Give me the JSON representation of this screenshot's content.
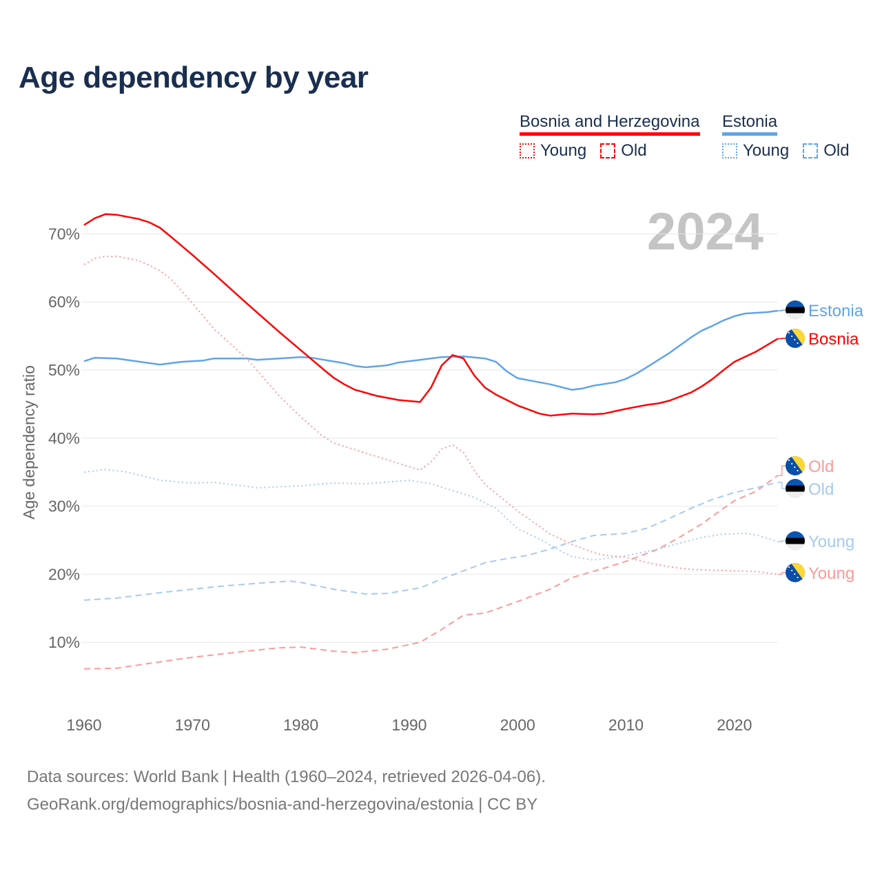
{
  "title": "Age dependency by year",
  "legend": {
    "groups": [
      {
        "name": "Bosnia and Herzegovina",
        "color": "#ff0000",
        "items": [
          "Young",
          "Old"
        ]
      },
      {
        "name": "Estonia",
        "color": "#5fa4e8",
        "items": [
          "Young",
          "Old"
        ]
      }
    ]
  },
  "year_watermark": "2024",
  "footer": {
    "line1": "Data sources: World Bank | Health (1960–2024, retrieved 2026-04-06).",
    "line2": "GeoRank.org/demographics/bosnia-and-herzegovina/estonia | CC BY"
  },
  "chart_data": {
    "type": "line",
    "title": "Age dependency by year",
    "xlabel": "",
    "ylabel": "Age dependency ratio",
    "xlim": [
      1960,
      2024
    ],
    "ylim": [
      0,
      75
    ],
    "xticks": [
      1960,
      1970,
      1980,
      1990,
      2000,
      2010,
      2020
    ],
    "yticks": [
      10,
      20,
      30,
      40,
      50,
      60,
      70
    ],
    "ytick_labels": [
      "10%",
      "20%",
      "30%",
      "40%",
      "50%",
      "60%",
      "70%"
    ],
    "grid": "horizontal",
    "legend_position": "top-right",
    "series": [
      {
        "name": "Estonia",
        "end_label": "Estonia",
        "flag": "estonia",
        "color": "#5fa4e8",
        "style": "solid",
        "points": [
          [
            1960,
            51.3
          ],
          [
            1961,
            51.8
          ],
          [
            1963,
            51.7
          ],
          [
            1967,
            50.8
          ],
          [
            1969,
            51.2
          ],
          [
            1971,
            51.4
          ],
          [
            1972,
            51.7
          ],
          [
            1975,
            51.7
          ],
          [
            1976,
            51.5
          ],
          [
            1980,
            51.9
          ],
          [
            1981,
            51.8
          ],
          [
            1984,
            51.0
          ],
          [
            1985,
            50.6
          ],
          [
            1986,
            50.4
          ],
          [
            1988,
            50.7
          ],
          [
            1989,
            51.1
          ],
          [
            1991,
            51.5
          ],
          [
            1993,
            51.9
          ],
          [
            1995,
            52.0
          ],
          [
            1997,
            51.7
          ],
          [
            1998,
            51.2
          ],
          [
            1999,
            49.8
          ],
          [
            2000,
            48.8
          ],
          [
            2001,
            48.5
          ],
          [
            2003,
            47.9
          ],
          [
            2005,
            47.1
          ],
          [
            2006,
            47.3
          ],
          [
            2007,
            47.7
          ],
          [
            2009,
            48.2
          ],
          [
            2010,
            48.7
          ],
          [
            2011,
            49.5
          ],
          [
            2012,
            50.5
          ],
          [
            2014,
            52.5
          ],
          [
            2016,
            54.8
          ],
          [
            2017,
            55.8
          ],
          [
            2018,
            56.5
          ],
          [
            2019,
            57.3
          ],
          [
            2020,
            57.9
          ],
          [
            2021,
            58.3
          ],
          [
            2023,
            58.5
          ],
          [
            2024,
            58.7
          ]
        ]
      },
      {
        "name": "Bosnia and Herzegovina",
        "end_label": "Bosnia",
        "flag": "bosnia",
        "color": "#ff0000",
        "style": "solid",
        "points": [
          [
            1960,
            71.3
          ],
          [
            1961,
            72.3
          ],
          [
            1962,
            72.9
          ],
          [
            1963,
            72.8
          ],
          [
            1965,
            72.2
          ],
          [
            1966,
            71.7
          ],
          [
            1967,
            70.9
          ],
          [
            1968,
            69.6
          ],
          [
            1970,
            66.9
          ],
          [
            1972,
            64.1
          ],
          [
            1975,
            59.8
          ],
          [
            1978,
            55.6
          ],
          [
            1980,
            52.9
          ],
          [
            1982,
            50.2
          ],
          [
            1983,
            48.9
          ],
          [
            1984,
            47.9
          ],
          [
            1985,
            47.1
          ],
          [
            1987,
            46.2
          ],
          [
            1989,
            45.6
          ],
          [
            1991,
            45.3
          ],
          [
            1992,
            47.4
          ],
          [
            1993,
            50.7
          ],
          [
            1994,
            52.2
          ],
          [
            1995,
            51.7
          ],
          [
            1996,
            49.2
          ],
          [
            1997,
            47.4
          ],
          [
            1998,
            46.4
          ],
          [
            2000,
            44.8
          ],
          [
            2002,
            43.6
          ],
          [
            2003,
            43.3
          ],
          [
            2005,
            43.6
          ],
          [
            2007,
            43.5
          ],
          [
            2008,
            43.6
          ],
          [
            2010,
            44.3
          ],
          [
            2012,
            44.9
          ],
          [
            2013,
            45.1
          ],
          [
            2014,
            45.5
          ],
          [
            2016,
            46.7
          ],
          [
            2017,
            47.6
          ],
          [
            2018,
            48.7
          ],
          [
            2019,
            50.0
          ],
          [
            2020,
            51.2
          ],
          [
            2022,
            52.7
          ],
          [
            2024,
            54.6
          ]
        ]
      },
      {
        "name": "Bosnia and Herzegovina Old",
        "end_label": "Old",
        "flag": "bosnia",
        "color": "#ff9999",
        "style": "dashed",
        "points": [
          [
            1960,
            6.1
          ],
          [
            1963,
            6.2
          ],
          [
            1966,
            6.9
          ],
          [
            1970,
            7.8
          ],
          [
            1975,
            8.7
          ],
          [
            1978,
            9.2
          ],
          [
            1980,
            9.3
          ],
          [
            1983,
            8.7
          ],
          [
            1985,
            8.5
          ],
          [
            1988,
            9.0
          ],
          [
            1991,
            10.0
          ],
          [
            1993,
            11.9
          ],
          [
            1995,
            14.0
          ],
          [
            1997,
            14.3
          ],
          [
            2000,
            16.0
          ],
          [
            2003,
            17.8
          ],
          [
            2005,
            19.5
          ],
          [
            2008,
            20.9
          ],
          [
            2010,
            21.9
          ],
          [
            2013,
            23.7
          ],
          [
            2015,
            25.5
          ],
          [
            2017,
            27.4
          ],
          [
            2019,
            29.7
          ],
          [
            2020,
            30.8
          ],
          [
            2022,
            32.2
          ],
          [
            2024,
            34.5
          ]
        ]
      },
      {
        "name": "Estonia Old",
        "end_label": "Old",
        "flag": "estonia",
        "color": "#a6c9f0",
        "style": "dashed",
        "points": [
          [
            1960,
            16.2
          ],
          [
            1963,
            16.5
          ],
          [
            1967,
            17.3
          ],
          [
            1970,
            17.8
          ],
          [
            1973,
            18.3
          ],
          [
            1977,
            18.8
          ],
          [
            1979,
            19.0
          ],
          [
            1980,
            18.8
          ],
          [
            1983,
            17.8
          ],
          [
            1986,
            17.1
          ],
          [
            1988,
            17.2
          ],
          [
            1991,
            18.0
          ],
          [
            1993,
            19.3
          ],
          [
            1995,
            20.5
          ],
          [
            1997,
            21.7
          ],
          [
            1999,
            22.3
          ],
          [
            2001,
            22.8
          ],
          [
            2003,
            23.7
          ],
          [
            2005,
            24.8
          ],
          [
            2007,
            25.7
          ],
          [
            2009,
            25.9
          ],
          [
            2010,
            26.0
          ],
          [
            2012,
            26.8
          ],
          [
            2014,
            28.2
          ],
          [
            2016,
            29.7
          ],
          [
            2018,
            31.0
          ],
          [
            2020,
            32.0
          ],
          [
            2022,
            32.7
          ],
          [
            2024,
            33.5
          ]
        ]
      },
      {
        "name": "Estonia Young",
        "end_label": "Young",
        "flag": "estonia",
        "color": "#a6c9f0",
        "style": "dotted",
        "points": [
          [
            1960,
            35.0
          ],
          [
            1962,
            35.4
          ],
          [
            1964,
            35.0
          ],
          [
            1967,
            33.8
          ],
          [
            1970,
            33.4
          ],
          [
            1972,
            33.5
          ],
          [
            1976,
            32.7
          ],
          [
            1980,
            33.0
          ],
          [
            1983,
            33.4
          ],
          [
            1986,
            33.3
          ],
          [
            1990,
            33.8
          ],
          [
            1992,
            33.3
          ],
          [
            1994,
            32.3
          ],
          [
            1996,
            31.3
          ],
          [
            1998,
            29.7
          ],
          [
            2000,
            26.7
          ],
          [
            2002,
            25.2
          ],
          [
            2004,
            23.4
          ],
          [
            2005,
            22.6
          ],
          [
            2007,
            22.1
          ],
          [
            2010,
            22.7
          ],
          [
            2013,
            23.7
          ],
          [
            2015,
            24.6
          ],
          [
            2017,
            25.4
          ],
          [
            2019,
            25.9
          ],
          [
            2021,
            26.0
          ],
          [
            2022,
            25.8
          ],
          [
            2024,
            24.8
          ]
        ]
      },
      {
        "name": "Bosnia and Herzegovina Young",
        "end_label": "Young",
        "flag": "bosnia",
        "color": "#ff9999",
        "style": "dotted",
        "points": [
          [
            1960,
            65.5
          ],
          [
            1961,
            66.4
          ],
          [
            1962,
            66.7
          ],
          [
            1963,
            66.7
          ],
          [
            1965,
            66.1
          ],
          [
            1966,
            65.4
          ],
          [
            1967,
            64.6
          ],
          [
            1968,
            63.4
          ],
          [
            1970,
            59.8
          ],
          [
            1972,
            56.0
          ],
          [
            1975,
            51.7
          ],
          [
            1978,
            46.2
          ],
          [
            1980,
            43.1
          ],
          [
            1982,
            40.3
          ],
          [
            1983,
            39.3
          ],
          [
            1985,
            38.3
          ],
          [
            1987,
            37.3
          ],
          [
            1989,
            36.3
          ],
          [
            1991,
            35.3
          ],
          [
            1992,
            36.5
          ],
          [
            1993,
            38.4
          ],
          [
            1994,
            39.0
          ],
          [
            1995,
            37.9
          ],
          [
            1996,
            35.2
          ],
          [
            1997,
            33.2
          ],
          [
            2000,
            29.3
          ],
          [
            2003,
            25.9
          ],
          [
            2005,
            24.4
          ],
          [
            2007,
            23.2
          ],
          [
            2008,
            22.8
          ],
          [
            2010,
            22.5
          ],
          [
            2012,
            21.7
          ],
          [
            2014,
            21.1
          ],
          [
            2016,
            20.7
          ],
          [
            2018,
            20.6
          ],
          [
            2020,
            20.5
          ],
          [
            2022,
            20.4
          ],
          [
            2024,
            20.0
          ]
        ]
      }
    ]
  }
}
